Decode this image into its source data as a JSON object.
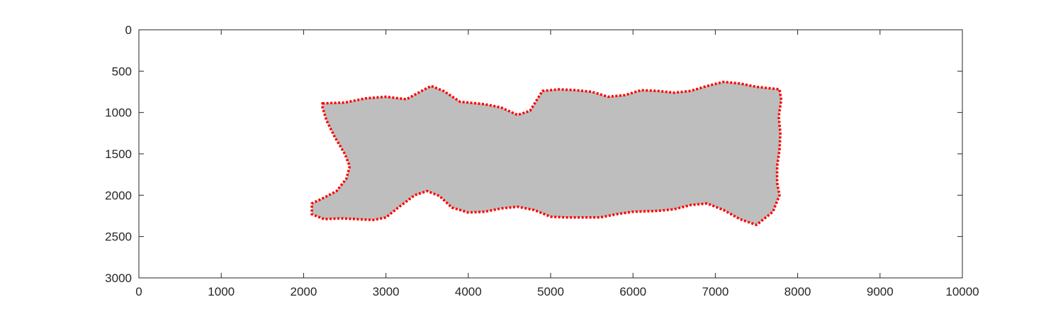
{
  "chart_data": {
    "type": "area",
    "title": "",
    "xlabel": "",
    "ylabel": "",
    "xlim": [
      0,
      10000
    ],
    "ylim": [
      3000,
      0
    ],
    "y_axis_reversed": true,
    "grid": false,
    "x_ticks": [
      0,
      1000,
      2000,
      3000,
      4000,
      5000,
      6000,
      7000,
      8000,
      9000,
      10000
    ],
    "y_ticks": [
      0,
      500,
      1000,
      1500,
      2000,
      2500,
      3000
    ],
    "x_tick_labels": [
      "0",
      "1000",
      "2000",
      "3000",
      "4000",
      "5000",
      "6000",
      "7000",
      "8000",
      "9000",
      "10000"
    ],
    "y_tick_labels": [
      "0",
      "500",
      "1000",
      "1500",
      "2000",
      "2500",
      "3000"
    ],
    "colors": {
      "region_fill": "#bebebe",
      "boundary": "#ff0000",
      "axis": "#262626"
    },
    "series": [
      {
        "kind": "filled-region",
        "outline": [
          [
            2230,
            890
          ],
          [
            2500,
            880
          ],
          [
            2750,
            830
          ],
          [
            3000,
            810
          ],
          [
            3250,
            840
          ],
          [
            3450,
            730
          ],
          [
            3550,
            680
          ],
          [
            3700,
            740
          ],
          [
            3900,
            870
          ],
          [
            4200,
            900
          ],
          [
            4400,
            940
          ],
          [
            4600,
            1030
          ],
          [
            4750,
            980
          ],
          [
            4900,
            740
          ],
          [
            5100,
            720
          ],
          [
            5300,
            730
          ],
          [
            5500,
            750
          ],
          [
            5700,
            810
          ],
          [
            5900,
            790
          ],
          [
            6100,
            730
          ],
          [
            6300,
            740
          ],
          [
            6500,
            760
          ],
          [
            6700,
            740
          ],
          [
            6900,
            680
          ],
          [
            7100,
            630
          ],
          [
            7300,
            650
          ],
          [
            7500,
            690
          ],
          [
            7780,
            720
          ],
          [
            7800,
            850
          ],
          [
            7770,
            1050
          ],
          [
            7790,
            1250
          ],
          [
            7780,
            1450
          ],
          [
            7750,
            1650
          ],
          [
            7750,
            1850
          ],
          [
            7780,
            2000
          ],
          [
            7700,
            2200
          ],
          [
            7500,
            2360
          ],
          [
            7300,
            2290
          ],
          [
            7100,
            2180
          ],
          [
            6900,
            2100
          ],
          [
            6700,
            2120
          ],
          [
            6500,
            2170
          ],
          [
            6300,
            2190
          ],
          [
            6000,
            2200
          ],
          [
            5800,
            2230
          ],
          [
            5600,
            2270
          ],
          [
            5400,
            2270
          ],
          [
            5200,
            2270
          ],
          [
            5000,
            2260
          ],
          [
            4800,
            2180
          ],
          [
            4600,
            2140
          ],
          [
            4400,
            2160
          ],
          [
            4200,
            2200
          ],
          [
            4000,
            2210
          ],
          [
            3800,
            2150
          ],
          [
            3650,
            2010
          ],
          [
            3500,
            1950
          ],
          [
            3350,
            2000
          ],
          [
            3150,
            2150
          ],
          [
            3000,
            2270
          ],
          [
            2850,
            2300
          ],
          [
            2650,
            2290
          ],
          [
            2450,
            2280
          ],
          [
            2250,
            2290
          ],
          [
            2100,
            2230
          ],
          [
            2100,
            2100
          ],
          [
            2250,
            2030
          ],
          [
            2400,
            1950
          ],
          [
            2520,
            1800
          ],
          [
            2560,
            1650
          ],
          [
            2500,
            1500
          ],
          [
            2380,
            1300
          ],
          [
            2280,
            1100
          ],
          [
            2230,
            940
          ]
        ]
      },
      {
        "kind": "dotted-boundary",
        "closed": true,
        "same_as_outline": true
      }
    ]
  }
}
